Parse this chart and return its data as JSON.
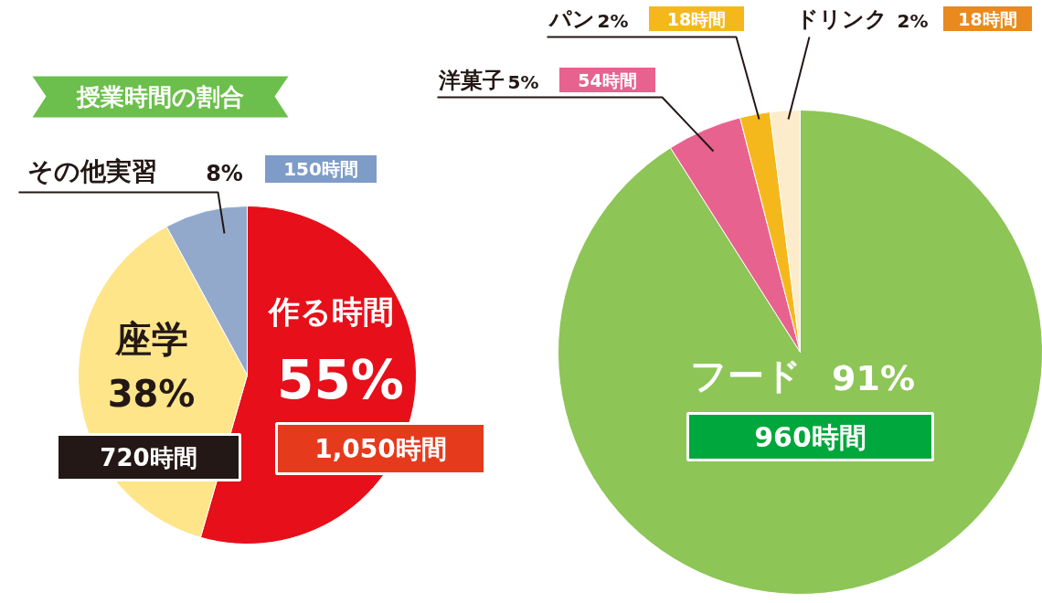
{
  "chart_data": [
    {
      "type": "pie",
      "title": "授業時間の割合",
      "categories": [
        "作る時間",
        "座学",
        "その他実習"
      ],
      "values": [
        55,
        38,
        8
      ],
      "value_labels": [
        "55%",
        "38%",
        "8%"
      ],
      "colors": [
        "#e60f1a",
        "#fee58a",
        "#92a9cc"
      ],
      "annotations": [
        "1,050時間",
        "720時間",
        "150時間"
      ]
    },
    {
      "type": "pie",
      "categories": [
        "フード",
        "洋菓子",
        "パン",
        "ドリンク"
      ],
      "values": [
        91,
        5,
        2,
        2
      ],
      "value_labels": [
        "91%",
        "5%",
        "2%",
        "2%"
      ],
      "colors": [
        "#8dc556",
        "#e8628f",
        "#f5b81c",
        "#fdeccb"
      ],
      "annotations": [
        "960時間",
        "54時間",
        "18時間",
        "18時間"
      ]
    }
  ]
}
